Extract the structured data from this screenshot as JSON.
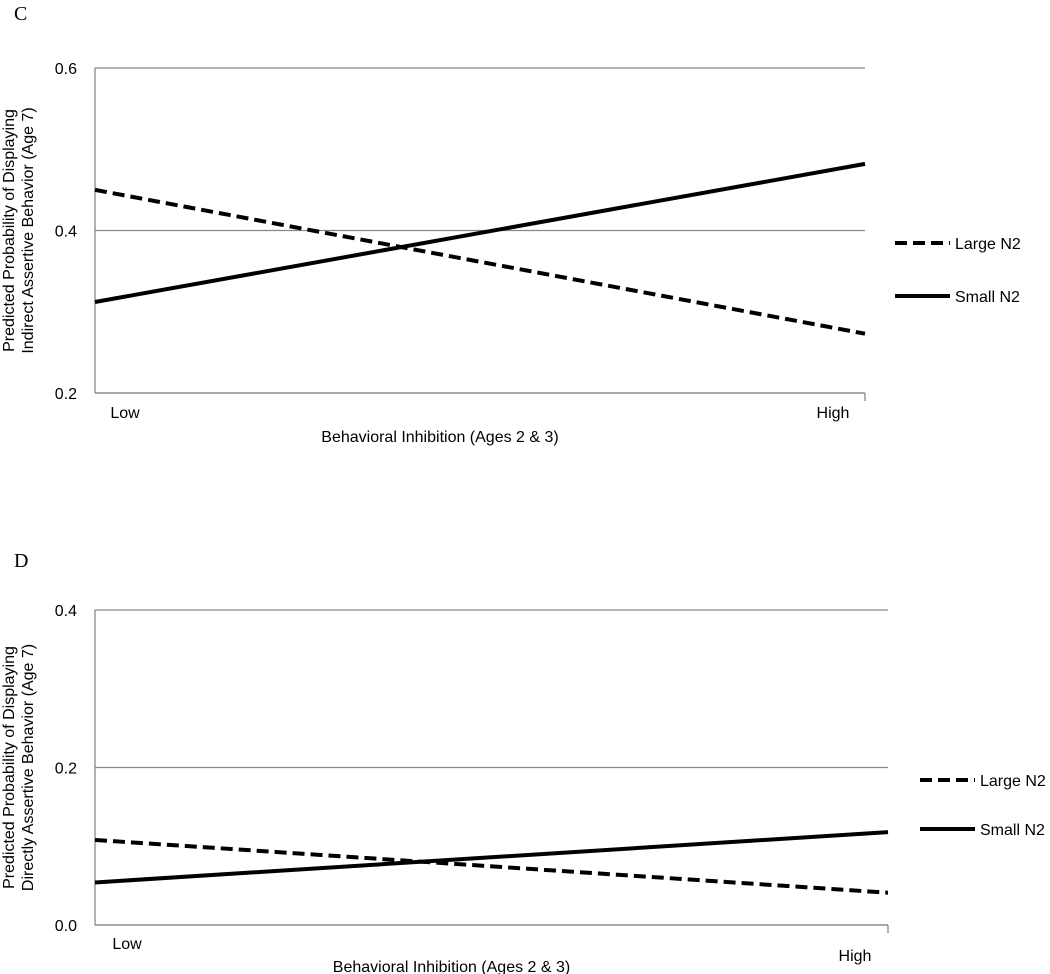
{
  "chart_data": [
    {
      "type": "line",
      "panel": "C",
      "y_label": [
        "Predicted Probability of Displaying",
        "Indirect Assertive Behavior (Age 7)"
      ],
      "x_label": "Behavioral Inhibition (Ages 2 & 3)",
      "categories": [
        "Low",
        "High"
      ],
      "series": [
        {
          "name": "Large N2",
          "color": "#000000",
          "line_style": "dashed",
          "values": [
            0.45,
            0.273
          ]
        },
        {
          "name": "Small N2",
          "color": "#000000",
          "line_style": "solid",
          "values": [
            0.312,
            0.482
          ]
        }
      ],
      "ylim": [
        0.2,
        0.6
      ],
      "yticks": [
        0.2,
        0.4,
        0.6
      ],
      "grid": true,
      "legend": "right"
    },
    {
      "type": "line",
      "panel": "D",
      "y_label": [
        "Predicted Probability of Displaying",
        "Directly Assertive Behavior (Age 7)"
      ],
      "x_label": "Behavioral Inhibition (Ages 2 & 3)",
      "categories": [
        "Low",
        "High"
      ],
      "series": [
        {
          "name": "Large N2",
          "color": "#000000",
          "line_style": "dashed",
          "values": [
            0.108,
            0.041
          ]
        },
        {
          "name": "Small N2",
          "color": "#000000",
          "line_style": "solid",
          "values": [
            0.054,
            0.118
          ]
        }
      ],
      "ylim": [
        0,
        0.4
      ],
      "yticks": [
        {
          "value": 0,
          "label": "0.0"
        },
        0.2,
        0.4
      ],
      "grid": true,
      "legend": "right"
    }
  ]
}
